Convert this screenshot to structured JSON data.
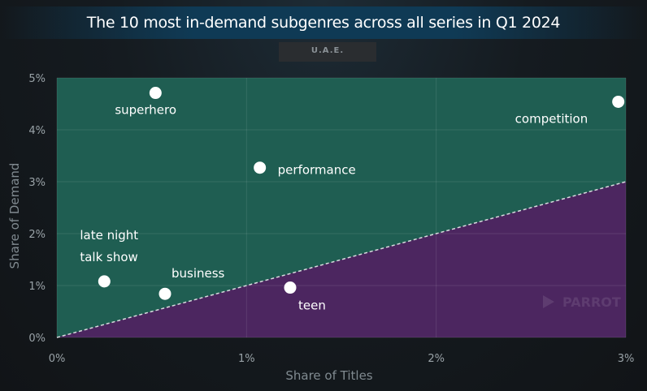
{
  "title": "The 10 most in-demand subgenres across all series in Q1 2024",
  "region": "U.A.E.",
  "watermark": "PARROT",
  "chart_data": {
    "type": "scatter",
    "title": "The 10 most in-demand subgenres across all series in Q1 2024",
    "xlabel": "Share of Titles",
    "ylabel": "Share of Demand",
    "xlim": [
      0,
      3
    ],
    "ylim": [
      0,
      5
    ],
    "x_ticks": [
      "0%",
      "1%",
      "2%",
      "3%"
    ],
    "y_ticks": [
      "0%",
      "1%",
      "2%",
      "3%",
      "4%",
      "5%"
    ],
    "reference_line": {
      "from": [
        0,
        0
      ],
      "to": [
        3,
        3
      ],
      "style": "dashed"
    },
    "colors": {
      "above": "#1f5e52",
      "below": "#4c2660",
      "points": "#ffffff"
    },
    "points": [
      {
        "label": "superhero",
        "x": 0.52,
        "y": 4.71,
        "label_pos": "below"
      },
      {
        "label": "competition",
        "x": 2.96,
        "y": 4.54,
        "label_pos": "below-left"
      },
      {
        "label": "performance",
        "x": 1.07,
        "y": 3.27,
        "label_pos": "right"
      },
      {
        "label": "late night\ntalk show",
        "x": 0.25,
        "y": 1.08,
        "label_pos": "above"
      },
      {
        "label": "business",
        "x": 0.57,
        "y": 0.84,
        "label_pos": "above-right"
      },
      {
        "label": "teen",
        "x": 1.23,
        "y": 0.96,
        "label_pos": "below-right"
      }
    ]
  }
}
